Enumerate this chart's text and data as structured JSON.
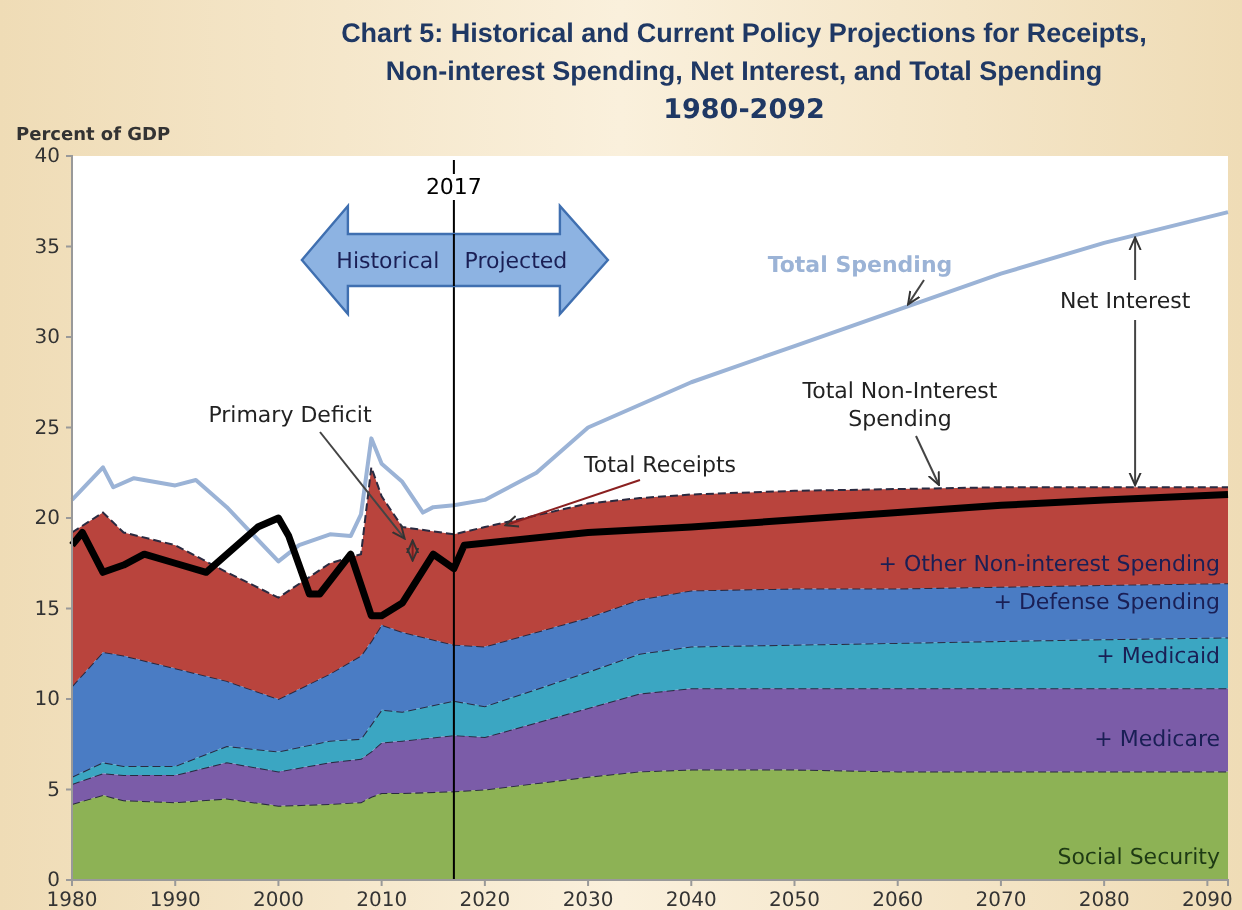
{
  "chart_data": {
    "type": "area",
    "stacked": true,
    "title": "Chart 5:  Historical and Current Policy Projections for Receipts, Non-interest Spending, Net Interest, and Total Spending",
    "subtitle": "1980-2092",
    "ylabel": "Percent of GDP",
    "x": [
      1980,
      1983,
      1985,
      1990,
      1995,
      2000,
      2005,
      2008,
      2009,
      2010,
      2012,
      2017,
      2020,
      2030,
      2035,
      2040,
      2050,
      2060,
      2070,
      2080,
      2092
    ],
    "xlim": [
      1980,
      2092
    ],
    "xticks": [
      1980,
      1990,
      2000,
      2010,
      2020,
      2030,
      2040,
      2050,
      2060,
      2070,
      2080,
      2090
    ],
    "ylim": [
      0,
      40
    ],
    "yticks": [
      0,
      5,
      10,
      15,
      20,
      25,
      30,
      35,
      40
    ],
    "series": [
      {
        "name": "Social Security",
        "color": "#8db255",
        "values": [
          4.2,
          4.7,
          4.4,
          4.3,
          4.5,
          4.1,
          4.2,
          4.3,
          4.6,
          4.8,
          4.8,
          4.9,
          5.0,
          5.7,
          6.0,
          6.1,
          6.1,
          6.0,
          6.0,
          6.0,
          6.0
        ]
      },
      {
        "name": "+ Medicare",
        "color": "#7b5ca8",
        "values": [
          1.1,
          1.2,
          1.4,
          1.5,
          2.0,
          1.9,
          2.3,
          2.4,
          2.5,
          2.8,
          2.9,
          3.1,
          2.9,
          3.8,
          4.3,
          4.5,
          4.5,
          4.6,
          4.6,
          4.6,
          4.6
        ]
      },
      {
        "name": "+ Medicaid",
        "color": "#3ba6c2",
        "values": [
          0.4,
          0.6,
          0.5,
          0.5,
          0.9,
          1.1,
          1.2,
          1.1,
          1.5,
          1.8,
          1.6,
          1.9,
          1.7,
          2.0,
          2.2,
          2.3,
          2.4,
          2.5,
          2.6,
          2.7,
          2.8
        ]
      },
      {
        "name": "+ Defense Spending",
        "color": "#4a7cc4",
        "values": [
          5.0,
          6.1,
          6.1,
          5.4,
          3.6,
          2.9,
          3.7,
          4.6,
          4.6,
          4.7,
          4.4,
          3.1,
          3.3,
          3.0,
          3.0,
          3.1,
          3.1,
          3.0,
          3.0,
          3.0,
          3.0
        ]
      },
      {
        "name": "+ Other Non-interest Spending",
        "color": "#b9443d",
        "values": [
          8.5,
          7.7,
          6.8,
          6.8,
          6.0,
          5.6,
          6.1,
          5.6,
          9.6,
          7.1,
          5.8,
          6.1,
          6.6,
          6.3,
          5.6,
          5.3,
          5.4,
          5.5,
          5.5,
          5.4,
          5.3
        ]
      },
      {
        "name": "Total Spending",
        "type": "line",
        "color": "#9bb3d6",
        "x": [
          1980,
          1983,
          1984,
          1986,
          1990,
          1992,
          1995,
          2000,
          2002,
          2005,
          2007,
          2008,
          2009,
          2010,
          2012,
          2014,
          2015,
          2017,
          2020,
          2025,
          2030,
          2040,
          2050,
          2060,
          2070,
          2080,
          2092
        ],
        "values": [
          21.0,
          22.8,
          21.7,
          22.2,
          21.8,
          22.1,
          20.6,
          17.6,
          18.5,
          19.1,
          19.0,
          20.2,
          24.4,
          23.0,
          22.0,
          20.3,
          20.6,
          20.7,
          21.0,
          22.5,
          25.0,
          27.5,
          29.5,
          31.5,
          33.5,
          35.2,
          36.9
        ]
      },
      {
        "name": "Total Receipts",
        "type": "line",
        "color": "#000000",
        "x": [
          1980,
          1981,
          1983,
          1985,
          1987,
          1990,
          1993,
          1998,
          2000,
          2001,
          2003,
          2004,
          2007,
          2009,
          2010,
          2012,
          2015,
          2017,
          2018,
          2030,
          2040,
          2050,
          2060,
          2070,
          2080,
          2092
        ],
        "values": [
          18.5,
          19.2,
          17.0,
          17.4,
          18.0,
          17.5,
          17.0,
          19.5,
          20.0,
          19.0,
          15.8,
          15.8,
          18.0,
          14.6,
          14.6,
          15.3,
          18.0,
          17.2,
          18.5,
          19.2,
          19.5,
          19.9,
          20.3,
          20.7,
          21.0,
          21.3
        ]
      }
    ],
    "ref_lines": [
      {
        "axis": "x",
        "value": 2017,
        "label": "2017",
        "color": "#000000"
      }
    ],
    "annotations": [
      "Historical",
      "Projected",
      "Primary Deficit",
      {
        "text": "Net Interest",
        "x": 2083,
        "y": 21.7
      },
      {
        "text": "Total Non-Interest Spending",
        "x": 2064,
        "y": 21.6
      }
    ]
  }
}
